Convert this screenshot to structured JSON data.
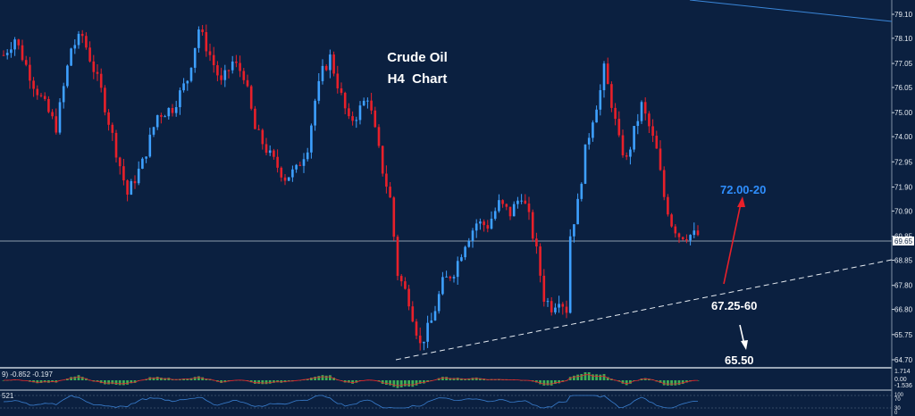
{
  "chart_data": {
    "type": "candlestick",
    "title": "Crude Oil",
    "subtitle": "H4  Chart",
    "ylim": [
      64.4,
      79.4
    ],
    "y_ticks": [
      "79.10",
      "78.10",
      "77.05",
      "76.05",
      "75.00",
      "74.00",
      "72.95",
      "71.90",
      "70.90",
      "69.85",
      "68.85",
      "67.80",
      "66.80",
      "65.75",
      "64.70"
    ],
    "current_price": "69.65",
    "bar_count": 186,
    "close_path": [
      [
        0,
        77.4
      ],
      [
        3,
        78.1
      ],
      [
        8,
        76.2
      ],
      [
        14,
        74.4
      ],
      [
        18,
        77.7
      ],
      [
        21,
        78.2
      ],
      [
        26,
        75.9
      ],
      [
        30,
        73.4
      ],
      [
        33,
        71.6
      ],
      [
        37,
        72.9
      ],
      [
        41,
        74.9
      ],
      [
        45,
        75.2
      ],
      [
        49,
        76.4
      ],
      [
        52,
        78.5
      ],
      [
        55,
        77.4
      ],
      [
        58,
        76.2
      ],
      [
        61,
        77.1
      ],
      [
        64,
        76.6
      ],
      [
        67,
        74.3
      ],
      [
        71,
        73.2
      ],
      [
        75,
        72.3
      ],
      [
        78,
        72.6
      ],
      [
        81,
        73.6
      ],
      [
        83,
        75.5
      ],
      [
        85,
        76.7
      ],
      [
        87,
        77.3
      ],
      [
        89,
        76.2
      ],
      [
        92,
        74.6
      ],
      [
        94,
        74.9
      ],
      [
        97,
        75.7
      ],
      [
        99,
        74.2
      ],
      [
        101,
        72.6
      ],
      [
        103,
        71.4
      ],
      [
        105,
        68.3
      ],
      [
        108,
        67.2
      ],
      [
        111,
        65.3
      ],
      [
        114,
        66.3
      ],
      [
        117,
        67.9
      ],
      [
        120,
        68.4
      ],
      [
        123,
        69.6
      ],
      [
        126,
        70.4
      ],
      [
        129,
        70.3
      ],
      [
        132,
        71.2
      ],
      [
        135,
        70.8
      ],
      [
        138,
        71.6
      ],
      [
        140,
        70.6
      ],
      [
        142,
        69.2
      ],
      [
        144,
        67.3
      ],
      [
        146,
        66.9
      ],
      [
        148,
        67.3
      ],
      [
        150,
        66.8
      ],
      [
        151,
        69.9
      ],
      [
        153,
        71.2
      ],
      [
        155,
        73.4
      ],
      [
        157,
        74.8
      ],
      [
        159,
        75.9
      ],
      [
        160,
        76.8
      ],
      [
        162,
        75.4
      ],
      [
        164,
        73.8
      ],
      [
        166,
        73.0
      ],
      [
        168,
        74.2
      ],
      [
        170,
        75.3
      ],
      [
        172,
        74.4
      ],
      [
        174,
        73.4
      ],
      [
        176,
        71.5
      ],
      [
        178,
        70.4
      ],
      [
        180,
        69.9
      ]
    ],
    "annotations": {
      "target_up": "72.00-20",
      "support": "67.25-60",
      "target_down": "65.50"
    },
    "indicator1_label": "9) -0.852 -0.197",
    "indicator1_ticks": [
      "1.714",
      "0.00",
      "-1.536"
    ],
    "indicator2_label": "521",
    "indicator2_ticks": [
      "100",
      "70",
      "30",
      "0"
    ],
    "colors": {
      "background": "#0b2040",
      "bull": "#3ea0ff",
      "bear": "#e8202a",
      "target_up": "#2f8fff",
      "text": "#ffffff",
      "histogram": "#3fae55"
    }
  }
}
